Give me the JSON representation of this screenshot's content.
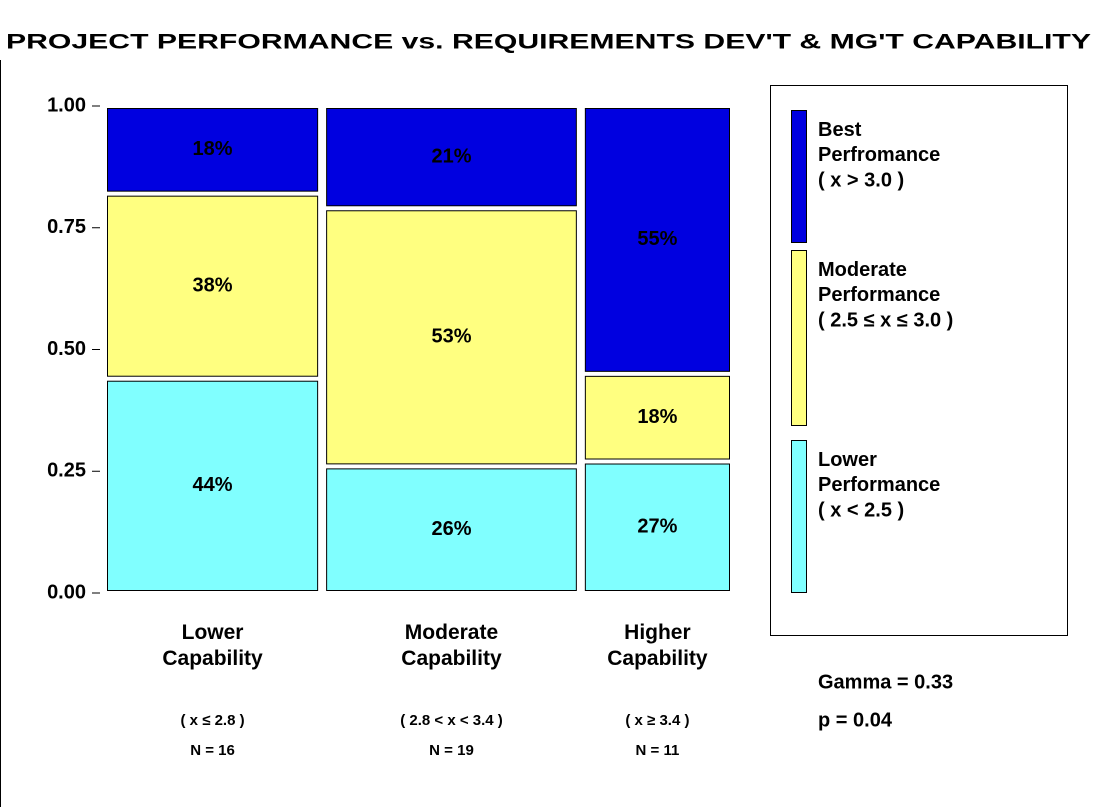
{
  "chart_data": {
    "type": "mosaic",
    "title": "PROJECT PERFORMANCE vs. REQUIREMENTS DEV'T & MG'T CAPABILITY",
    "categories": [
      "Lower Capability",
      "Moderate Capability",
      "Higher Capability"
    ],
    "category_ranges": [
      "( x ≤ 2.8 )",
      "( 2.8 < x < 3.4 )",
      "( x ≥ 3.4 )"
    ],
    "n": [
      16,
      19,
      11
    ],
    "n_labels": [
      "N = 16",
      "N = 19",
      "N = 11"
    ],
    "series": [
      {
        "name": "Lower Performance",
        "range": "( x < 2.5 )",
        "color": "#80ffff",
        "values": [
          0.44,
          0.26,
          0.27
        ],
        "value_labels": [
          "44%",
          "26%",
          "27%"
        ]
      },
      {
        "name": "Moderate Performance",
        "range": "( 2.5 ≤ x ≤ 3.0 )",
        "color": "#ffff80",
        "values": [
          0.38,
          0.53,
          0.18
        ],
        "value_labels": [
          "38%",
          "53%",
          "18%"
        ]
      },
      {
        "name": "Best Perfromance",
        "range": "( x > 3.0 )",
        "color": "#0000e0",
        "values": [
          0.18,
          0.21,
          0.55
        ],
        "value_labels": [
          "18%",
          "21%",
          "55%"
        ]
      }
    ],
    "ylim": [
      0,
      1
    ],
    "yticks": [
      {
        "value": 0,
        "label": "0.00"
      },
      {
        "value": 0.25,
        "label": "0.25"
      },
      {
        "value": 0.5,
        "label": "0.50"
      },
      {
        "value": 0.75,
        "label": "0.75"
      },
      {
        "value": 1,
        "label": "1.00"
      }
    ],
    "annotations": [
      "Gamma = 0.33",
      "p = 0.04"
    ]
  }
}
